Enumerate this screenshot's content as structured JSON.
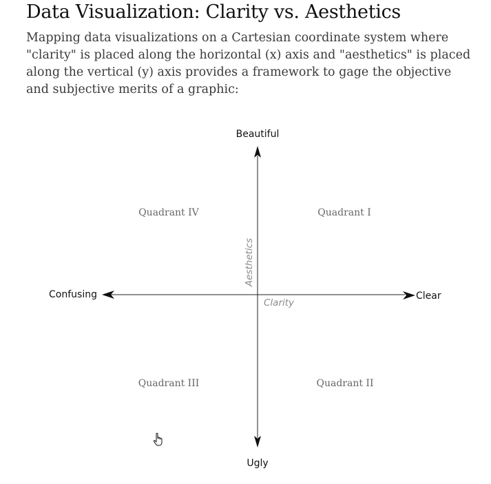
{
  "header": {
    "title": "Data Visualization: Clarity vs. Aesthetics",
    "intro": "Mapping data visualizations on a Cartesian coordinate system where \"clarity\" is placed along the horizontal (x) axis and \"aesthetics\" is placed along the vertical (y) axis provides a framework to gage the objective and subjective merits of a graphic:"
  },
  "diagram": {
    "top_label": "Beautiful",
    "bottom_label": "Ugly",
    "left_label": "Confusing",
    "right_label": "Clear",
    "x_axis_name": "Clarity",
    "y_axis_name": "Aesthetics",
    "quadrants": {
      "q1": "Quadrant I",
      "q2": "Quadrant II",
      "q3": "Quadrant III",
      "q4": "Quadrant IV"
    }
  },
  "icons": {
    "cursor": "hand-pointer-icon"
  }
}
